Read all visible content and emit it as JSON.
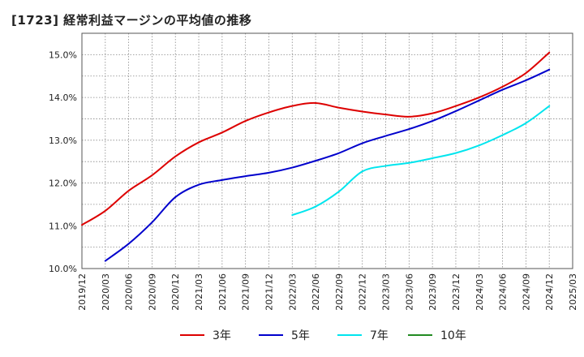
{
  "chart_title": "[1723]  経常利益マージンの平均値の推移",
  "chart_data": {
    "type": "line",
    "title": "[1723]  経常利益マージンの平均値の推移",
    "xlabel": "",
    "ylabel": "",
    "ylim": [
      10.0,
      15.5
    ],
    "y_ticks": [
      "10.0%",
      "11.0%",
      "12.0%",
      "13.0%",
      "14.0%",
      "15.0%"
    ],
    "y_tick_values": [
      10,
      11,
      12,
      13,
      14,
      15
    ],
    "x_ticks": [
      "2019/12",
      "2020/03",
      "2020/06",
      "2020/09",
      "2020/12",
      "2021/03",
      "2021/06",
      "2021/09",
      "2021/12",
      "2022/03",
      "2022/06",
      "2022/09",
      "2022/12",
      "2023/03",
      "2023/06",
      "2023/09",
      "2023/12",
      "2024/03",
      "2024/06",
      "2024/09",
      "2024/12",
      "2025/03"
    ],
    "grid": true,
    "legend_position": "bottom",
    "series": [
      {
        "name": "3年",
        "color": "#dd0000",
        "x": [
          "2019/12",
          "2020/03",
          "2020/06",
          "2020/09",
          "2020/12",
          "2021/03",
          "2021/06",
          "2021/09",
          "2021/12",
          "2022/03",
          "2022/06",
          "2022/09",
          "2022/12",
          "2023/03",
          "2023/06",
          "2023/09",
          "2023/12",
          "2024/03",
          "2024/06",
          "2024/09",
          "2024/12"
        ],
        "values": [
          11.02,
          11.35,
          11.82,
          12.18,
          12.62,
          12.95,
          13.18,
          13.45,
          13.65,
          13.8,
          13.87,
          13.76,
          13.67,
          13.6,
          13.55,
          13.63,
          13.8,
          14.0,
          14.25,
          14.57,
          15.05
        ]
      },
      {
        "name": "5年",
        "color": "#0000cc",
        "x": [
          "2020/03",
          "2020/06",
          "2020/09",
          "2020/12",
          "2021/03",
          "2021/06",
          "2021/09",
          "2021/12",
          "2022/03",
          "2022/06",
          "2022/09",
          "2022/12",
          "2023/03",
          "2023/06",
          "2023/09",
          "2023/12",
          "2024/03",
          "2024/06",
          "2024/09",
          "2024/12"
        ],
        "values": [
          10.18,
          10.58,
          11.08,
          11.67,
          11.96,
          12.07,
          12.16,
          12.24,
          12.36,
          12.52,
          12.7,
          12.93,
          13.1,
          13.26,
          13.45,
          13.68,
          13.93,
          14.18,
          14.4,
          14.65
        ]
      },
      {
        "name": "7年",
        "color": "#00e5ee",
        "x": [
          "2022/03",
          "2022/06",
          "2022/09",
          "2022/12",
          "2023/03",
          "2023/06",
          "2023/09",
          "2023/12",
          "2024/03",
          "2024/06",
          "2024/09",
          "2024/12"
        ],
        "values": [
          11.25,
          11.45,
          11.8,
          12.27,
          12.4,
          12.47,
          12.58,
          12.7,
          12.88,
          13.12,
          13.4,
          13.8
        ]
      },
      {
        "name": "10年",
        "color": "#228b22",
        "x": [],
        "values": []
      }
    ]
  }
}
